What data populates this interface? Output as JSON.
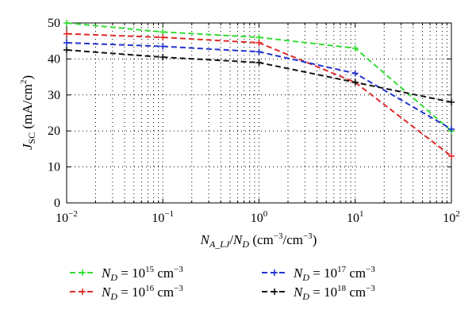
{
  "chart_data": {
    "type": "line",
    "x_scale": "log",
    "x": [
      0.01,
      0.1,
      1,
      10,
      100
    ],
    "xlim": [
      0.01,
      100
    ],
    "ylim": [
      0,
      50
    ],
    "y_ticks": [
      0,
      10,
      20,
      30,
      40,
      50
    ],
    "x_tick_labels": [
      {
        "base": "10",
        "exp": "−2"
      },
      {
        "base": "10",
        "exp": "−1"
      },
      {
        "base": "10",
        "exp": "0"
      },
      {
        "base": "10",
        "exp": "1"
      },
      {
        "base": "10",
        "exp": "2"
      }
    ],
    "ylabel": {
      "main": "J",
      "sub": "SC",
      "unit": " (mA/cm",
      "sup": "2",
      "close": ")"
    },
    "xlabel": {
      "n1": "N",
      "sub1": "A_LJ",
      "slash": "/",
      "n2": "N",
      "sub2": "D",
      "unit": " (cm",
      "sup1": "−3",
      "mid": "/cm",
      "sup2": "−3",
      "close": ")"
    },
    "grid": "dotted",
    "legend_position": "bottom",
    "series": [
      {
        "name": {
          "lhs": "N",
          "sub": "D",
          "eq": " = 10",
          "exp": "15",
          "unit": " cm",
          "uexp": "−3"
        },
        "color": "#33dd33",
        "values": [
          50,
          47.5,
          46,
          43,
          20
        ]
      },
      {
        "name": {
          "lhs": "N",
          "sub": "D",
          "eq": " = 10",
          "exp": "16",
          "unit": " cm",
          "uexp": "−3"
        },
        "color": "#dd2a2a",
        "values": [
          47,
          46,
          44.5,
          33.5,
          13
        ]
      },
      {
        "name": {
          "lhs": "N",
          "sub": "D",
          "eq": " = 10",
          "exp": "17",
          "unit": " cm",
          "uexp": "−3"
        },
        "color": "#2233cc",
        "values": [
          44.5,
          43.5,
          42,
          36,
          20.5
        ]
      },
      {
        "name": {
          "lhs": "N",
          "sub": "D",
          "eq": " = 10",
          "exp": "18",
          "unit": " cm",
          "uexp": "−3"
        },
        "color": "#111111",
        "values": [
          42.5,
          40.5,
          39,
          33.5,
          28
        ]
      }
    ]
  }
}
